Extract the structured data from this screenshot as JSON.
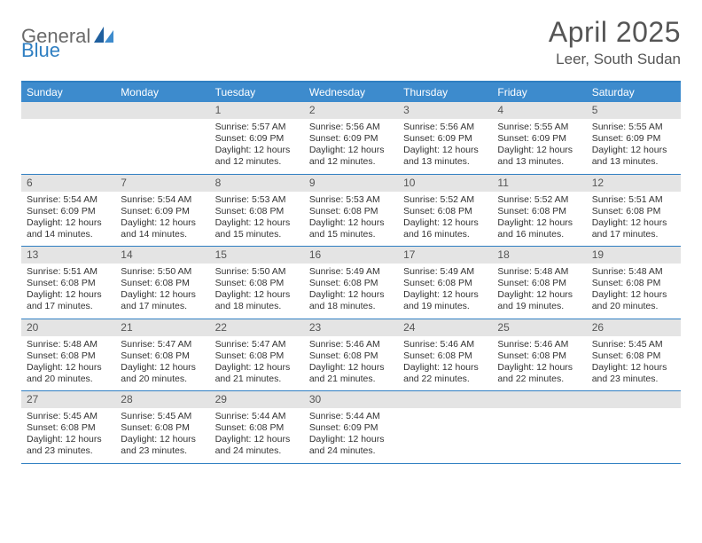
{
  "logo": {
    "part1": "General",
    "part2": "Blue"
  },
  "title": "April 2025",
  "location": "Leer, South Sudan",
  "colors": {
    "header_bg": "#3d8bcd",
    "border_top": "#2f7fc2",
    "daynum_bg": "#e4e4e4",
    "text_main": "#333333",
    "text_title": "#555555"
  },
  "weekdays": [
    "Sunday",
    "Monday",
    "Tuesday",
    "Wednesday",
    "Thursday",
    "Friday",
    "Saturday"
  ],
  "weeks": [
    [
      {
        "day": "",
        "sunrise": "",
        "sunset": "",
        "daylight": ""
      },
      {
        "day": "",
        "sunrise": "",
        "sunset": "",
        "daylight": ""
      },
      {
        "day": "1",
        "sunrise": "Sunrise: 5:57 AM",
        "sunset": "Sunset: 6:09 PM",
        "daylight": "Daylight: 12 hours and 12 minutes."
      },
      {
        "day": "2",
        "sunrise": "Sunrise: 5:56 AM",
        "sunset": "Sunset: 6:09 PM",
        "daylight": "Daylight: 12 hours and 12 minutes."
      },
      {
        "day": "3",
        "sunrise": "Sunrise: 5:56 AM",
        "sunset": "Sunset: 6:09 PM",
        "daylight": "Daylight: 12 hours and 13 minutes."
      },
      {
        "day": "4",
        "sunrise": "Sunrise: 5:55 AM",
        "sunset": "Sunset: 6:09 PM",
        "daylight": "Daylight: 12 hours and 13 minutes."
      },
      {
        "day": "5",
        "sunrise": "Sunrise: 5:55 AM",
        "sunset": "Sunset: 6:09 PM",
        "daylight": "Daylight: 12 hours and 13 minutes."
      }
    ],
    [
      {
        "day": "6",
        "sunrise": "Sunrise: 5:54 AM",
        "sunset": "Sunset: 6:09 PM",
        "daylight": "Daylight: 12 hours and 14 minutes."
      },
      {
        "day": "7",
        "sunrise": "Sunrise: 5:54 AM",
        "sunset": "Sunset: 6:09 PM",
        "daylight": "Daylight: 12 hours and 14 minutes."
      },
      {
        "day": "8",
        "sunrise": "Sunrise: 5:53 AM",
        "sunset": "Sunset: 6:08 PM",
        "daylight": "Daylight: 12 hours and 15 minutes."
      },
      {
        "day": "9",
        "sunrise": "Sunrise: 5:53 AM",
        "sunset": "Sunset: 6:08 PM",
        "daylight": "Daylight: 12 hours and 15 minutes."
      },
      {
        "day": "10",
        "sunrise": "Sunrise: 5:52 AM",
        "sunset": "Sunset: 6:08 PM",
        "daylight": "Daylight: 12 hours and 16 minutes."
      },
      {
        "day": "11",
        "sunrise": "Sunrise: 5:52 AM",
        "sunset": "Sunset: 6:08 PM",
        "daylight": "Daylight: 12 hours and 16 minutes."
      },
      {
        "day": "12",
        "sunrise": "Sunrise: 5:51 AM",
        "sunset": "Sunset: 6:08 PM",
        "daylight": "Daylight: 12 hours and 17 minutes."
      }
    ],
    [
      {
        "day": "13",
        "sunrise": "Sunrise: 5:51 AM",
        "sunset": "Sunset: 6:08 PM",
        "daylight": "Daylight: 12 hours and 17 minutes."
      },
      {
        "day": "14",
        "sunrise": "Sunrise: 5:50 AM",
        "sunset": "Sunset: 6:08 PM",
        "daylight": "Daylight: 12 hours and 17 minutes."
      },
      {
        "day": "15",
        "sunrise": "Sunrise: 5:50 AM",
        "sunset": "Sunset: 6:08 PM",
        "daylight": "Daylight: 12 hours and 18 minutes."
      },
      {
        "day": "16",
        "sunrise": "Sunrise: 5:49 AM",
        "sunset": "Sunset: 6:08 PM",
        "daylight": "Daylight: 12 hours and 18 minutes."
      },
      {
        "day": "17",
        "sunrise": "Sunrise: 5:49 AM",
        "sunset": "Sunset: 6:08 PM",
        "daylight": "Daylight: 12 hours and 19 minutes."
      },
      {
        "day": "18",
        "sunrise": "Sunrise: 5:48 AM",
        "sunset": "Sunset: 6:08 PM",
        "daylight": "Daylight: 12 hours and 19 minutes."
      },
      {
        "day": "19",
        "sunrise": "Sunrise: 5:48 AM",
        "sunset": "Sunset: 6:08 PM",
        "daylight": "Daylight: 12 hours and 20 minutes."
      }
    ],
    [
      {
        "day": "20",
        "sunrise": "Sunrise: 5:48 AM",
        "sunset": "Sunset: 6:08 PM",
        "daylight": "Daylight: 12 hours and 20 minutes."
      },
      {
        "day": "21",
        "sunrise": "Sunrise: 5:47 AM",
        "sunset": "Sunset: 6:08 PM",
        "daylight": "Daylight: 12 hours and 20 minutes."
      },
      {
        "day": "22",
        "sunrise": "Sunrise: 5:47 AM",
        "sunset": "Sunset: 6:08 PM",
        "daylight": "Daylight: 12 hours and 21 minutes."
      },
      {
        "day": "23",
        "sunrise": "Sunrise: 5:46 AM",
        "sunset": "Sunset: 6:08 PM",
        "daylight": "Daylight: 12 hours and 21 minutes."
      },
      {
        "day": "24",
        "sunrise": "Sunrise: 5:46 AM",
        "sunset": "Sunset: 6:08 PM",
        "daylight": "Daylight: 12 hours and 22 minutes."
      },
      {
        "day": "25",
        "sunrise": "Sunrise: 5:46 AM",
        "sunset": "Sunset: 6:08 PM",
        "daylight": "Daylight: 12 hours and 22 minutes."
      },
      {
        "day": "26",
        "sunrise": "Sunrise: 5:45 AM",
        "sunset": "Sunset: 6:08 PM",
        "daylight": "Daylight: 12 hours and 23 minutes."
      }
    ],
    [
      {
        "day": "27",
        "sunrise": "Sunrise: 5:45 AM",
        "sunset": "Sunset: 6:08 PM",
        "daylight": "Daylight: 12 hours and 23 minutes."
      },
      {
        "day": "28",
        "sunrise": "Sunrise: 5:45 AM",
        "sunset": "Sunset: 6:08 PM",
        "daylight": "Daylight: 12 hours and 23 minutes."
      },
      {
        "day": "29",
        "sunrise": "Sunrise: 5:44 AM",
        "sunset": "Sunset: 6:08 PM",
        "daylight": "Daylight: 12 hours and 24 minutes."
      },
      {
        "day": "30",
        "sunrise": "Sunrise: 5:44 AM",
        "sunset": "Sunset: 6:09 PM",
        "daylight": "Daylight: 12 hours and 24 minutes."
      },
      {
        "day": "",
        "sunrise": "",
        "sunset": "",
        "daylight": ""
      },
      {
        "day": "",
        "sunrise": "",
        "sunset": "",
        "daylight": ""
      },
      {
        "day": "",
        "sunrise": "",
        "sunset": "",
        "daylight": ""
      }
    ]
  ]
}
